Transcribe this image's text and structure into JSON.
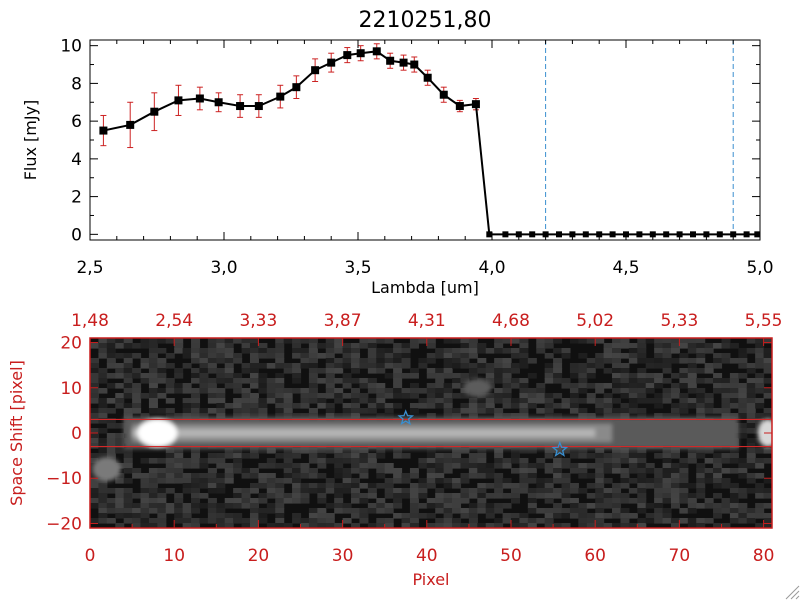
{
  "chart_data": [
    {
      "type": "line",
      "title": "2210251,80",
      "xlabel": "Lambda [um]",
      "ylabel": "Flux [mJy]",
      "xlim": [
        2.5,
        5.0
      ],
      "ylim": [
        -0.3,
        10.3
      ],
      "x_ticks": [
        "2,5",
        "3,0",
        "3,5",
        "4,0",
        "4,5",
        "5,0"
      ],
      "y_ticks": [
        "0",
        "2",
        "4",
        "6",
        "8",
        "10"
      ],
      "colors": {
        "line": "#000000",
        "markers": "#000000",
        "errorbars": "#cc2222",
        "vlines": "#3a8fd0"
      },
      "series": [
        {
          "x": [
            2.55,
            2.65,
            2.74,
            2.83,
            2.91,
            2.98,
            3.06,
            3.13,
            3.21,
            3.27,
            3.34,
            3.4,
            3.46,
            3.51,
            3.57,
            3.62,
            3.67,
            3.71,
            3.76,
            3.82,
            3.88,
            3.94,
            3.99,
            4.05,
            4.1,
            4.15,
            4.2,
            4.25,
            4.3,
            4.35,
            4.4,
            4.45,
            4.5,
            4.55,
            4.6,
            4.65,
            4.7,
            4.75,
            4.8,
            4.85,
            4.9,
            4.95,
            4.99
          ],
          "y": [
            5.5,
            5.8,
            6.5,
            7.1,
            7.2,
            7.0,
            6.8,
            6.8,
            7.3,
            7.8,
            8.7,
            9.1,
            9.5,
            9.6,
            9.7,
            9.2,
            9.1,
            9.0,
            8.3,
            7.4,
            6.8,
            6.9,
            0,
            0,
            0,
            0,
            0,
            0,
            0,
            0,
            0,
            0,
            0,
            0,
            0,
            0,
            0,
            0,
            0,
            0,
            0,
            0,
            0
          ],
          "yerr": [
            0.8,
            1.2,
            1.0,
            0.8,
            0.6,
            0.5,
            0.6,
            0.6,
            0.6,
            0.6,
            0.6,
            0.5,
            0.4,
            0.4,
            0.4,
            0.4,
            0.4,
            0.4,
            0.4,
            0.4,
            0.3,
            0.3,
            0,
            0,
            0,
            0,
            0,
            0,
            0,
            0,
            0,
            0,
            0,
            0,
            0,
            0,
            0,
            0,
            0,
            0,
            0,
            0,
            0
          ]
        }
      ],
      "vlines": [
        4.2,
        4.9
      ]
    },
    {
      "type": "heatmap",
      "xlabel": "Pixel",
      "ylabel": "Space Shift [pixel]",
      "xlim": [
        0,
        81
      ],
      "ylim": [
        -21,
        21
      ],
      "x_ticks": [
        "0",
        "10",
        "20",
        "30",
        "40",
        "50",
        "60",
        "70",
        "80"
      ],
      "y_ticks": [
        "20",
        "10",
        "0",
        "−10",
        "−20"
      ],
      "top_axis_ticks": [
        "1,48",
        "2,54",
        "3,33",
        "3,87",
        "4,31",
        "4,68",
        "5,02",
        "5,33",
        "5,55"
      ],
      "colormap": "grayscale",
      "trace_center": 0,
      "aperture_lines_y": [
        3,
        -3
      ],
      "markers": [
        {
          "symbol": "star",
          "x": 37.5,
          "y": 3.3
        },
        {
          "symbol": "star",
          "x": 55.8,
          "y": -3.7
        }
      ],
      "bright_regions": [
        {
          "x": 8,
          "y": 0,
          "level": "saturated"
        },
        {
          "x": 2,
          "y": -8,
          "level": "medium"
        },
        {
          "x": 46,
          "y": 10,
          "level": "faint"
        },
        {
          "x": 80.5,
          "y": 0,
          "level": "bright"
        }
      ],
      "colors": {
        "axes": "#c81e1e",
        "aperture": "#d22828",
        "markers": "#3a8fd0"
      }
    }
  ]
}
